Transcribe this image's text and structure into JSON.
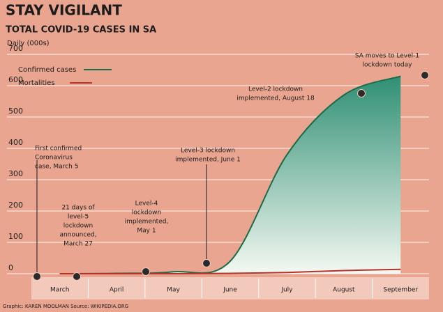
{
  "chart_data": {
    "type": "line",
    "title": "STAY VIGILANT",
    "subtitle": "TOTAL COVID-19 CASES IN SA",
    "y_label": "Daily (000s)",
    "categories": [
      "March",
      "April",
      "May",
      "June",
      "July",
      "August",
      "September"
    ],
    "series": [
      {
        "name": "Confirmed cases",
        "color": "#1d6b47",
        "values": [
          0,
          1,
          6,
          40,
          380,
          570,
          630
        ]
      },
      {
        "name": "Mortalities",
        "color": "#b3322b",
        "values": [
          0,
          0,
          0,
          1,
          4,
          10,
          14
        ]
      }
    ],
    "ylim": [
      0,
      700
    ],
    "yticks": [
      0,
      100,
      200,
      300,
      400,
      500,
      600,
      700
    ],
    "grid": true,
    "annotations": [
      [
        "First confirmed",
        "Coronavirus",
        "case, March 5"
      ],
      [
        "21 days of",
        "level-5",
        "lockdown",
        "announced,",
        "March 27"
      ],
      [
        "Level-4",
        "lockdown",
        "implemented,",
        "May 1"
      ],
      [
        "Level-3 lockdown",
        "implemented, June 1"
      ],
      [
        "Level-2 lockdown",
        "implemented, August 18"
      ],
      [
        "SA moves to Level-1",
        "lockdown today"
      ]
    ],
    "credit": "Graphic: KAREN MOOLMAN Source: WIKIPEDIA.ORG"
  }
}
